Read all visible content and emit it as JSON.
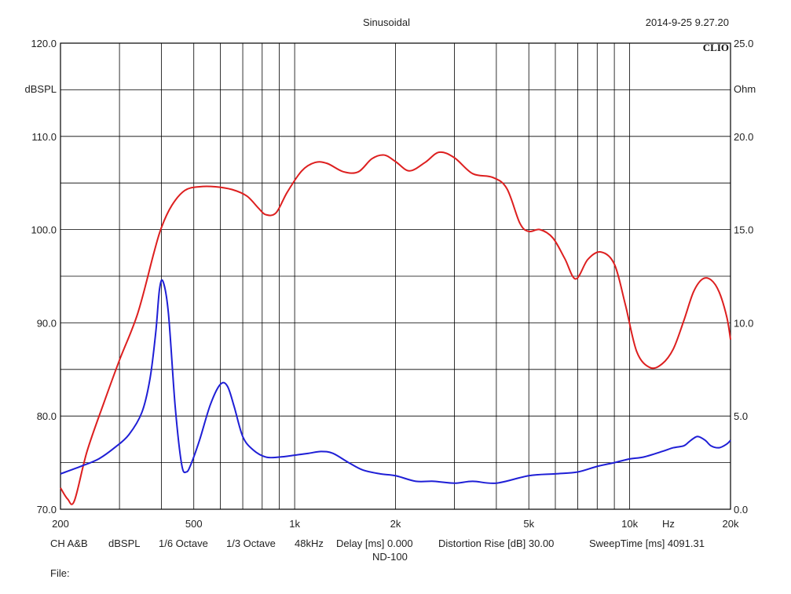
{
  "chart_data": {
    "type": "line",
    "title": "Sinusoidal",
    "timestamp": "2014-9-25 9.27.20",
    "brand": "CLIO",
    "x_scale": "log",
    "xlim": [
      200,
      20000
    ],
    "x_unit": "Hz",
    "x_ticks": [
      {
        "value": 200,
        "label": "200"
      },
      {
        "value": 500,
        "label": "500"
      },
      {
        "value": 1000,
        "label": "1k"
      },
      {
        "value": 2000,
        "label": "2k"
      },
      {
        "value": 5000,
        "label": "5k"
      },
      {
        "value": 10000,
        "label": "10k"
      },
      {
        "value": 20000,
        "label": "20k"
      }
    ],
    "x_grid": [
      200,
      300,
      400,
      500,
      600,
      700,
      800,
      900,
      1000,
      2000,
      3000,
      4000,
      5000,
      6000,
      7000,
      8000,
      9000,
      10000,
      20000
    ],
    "y_left": {
      "label": "dBSPL",
      "lim": [
        70,
        120
      ],
      "ticks": [
        {
          "value": 120,
          "label": "120.0"
        },
        {
          "value": 110,
          "label": "110.0"
        },
        {
          "value": 100,
          "label": "100.0"
        },
        {
          "value": 90,
          "label": "90.0"
        },
        {
          "value": 80,
          "label": "80.0"
        },
        {
          "value": 70,
          "label": "70.0"
        }
      ],
      "grid": [
        70,
        75,
        80,
        85,
        90,
        95,
        100,
        105,
        110,
        115,
        120
      ]
    },
    "y_right": {
      "label": "Ohm",
      "lim": [
        0,
        25
      ],
      "ticks": [
        {
          "value": 25,
          "label": "25.0"
        },
        {
          "value": 20,
          "label": "20.0"
        },
        {
          "value": 15,
          "label": "15.0"
        },
        {
          "value": 10,
          "label": "10.0"
        },
        {
          "value": 5,
          "label": "5.0"
        },
        {
          "value": 0,
          "label": "0.0"
        }
      ]
    },
    "grid": true,
    "series": [
      {
        "color": "#dd1f1f",
        "axis": "left",
        "x": [
          200,
          210,
          220,
          240,
          270,
          300,
          340,
          380,
          400,
          430,
          470,
          520,
          580,
          650,
          720,
          780,
          820,
          880,
          950,
          1050,
          1150,
          1250,
          1400,
          1550,
          1700,
          1850,
          2000,
          2200,
          2450,
          2700,
          3000,
          3400,
          3900,
          4300,
          4700,
          5000,
          5400,
          5900,
          6400,
          6900,
          7500,
          8200,
          9000,
          9700,
          10500,
          11500,
          12500,
          13500,
          14500,
          15500,
          16500,
          17500,
          18500,
          19500,
          20000
        ],
        "y": [
          72.3,
          71.1,
          70.9,
          76.2,
          81.5,
          86.0,
          91.0,
          97.5,
          100.2,
          102.6,
          104.2,
          104.6,
          104.6,
          104.3,
          103.6,
          102.3,
          101.6,
          101.8,
          104.0,
          106.3,
          107.2,
          107.1,
          106.2,
          106.2,
          107.6,
          108.0,
          107.3,
          106.3,
          107.2,
          108.3,
          107.7,
          106.0,
          105.6,
          104.4,
          100.7,
          99.8,
          100.0,
          99.1,
          96.9,
          94.7,
          96.8,
          97.6,
          96.3,
          92.0,
          86.9,
          85.2,
          85.6,
          87.2,
          90.2,
          93.3,
          94.7,
          94.6,
          93.3,
          90.6,
          88.2
        ]
      },
      {
        "color": "#1f1fd6",
        "axis": "right",
        "x": [
          200,
          230,
          260,
          290,
          320,
          350,
          370,
          385,
          395,
          405,
          420,
          440,
          460,
          475,
          490,
          520,
          560,
          600,
          630,
          660,
          700,
          750,
          820,
          900,
          1000,
          1100,
          1200,
          1300,
          1450,
          1600,
          1800,
          2000,
          2300,
          2600,
          3000,
          3400,
          4000,
          5000,
          6000,
          7000,
          8000,
          9000,
          10000,
          11000,
          12500,
          13500,
          14500,
          15000,
          15500,
          16000,
          16800,
          17500,
          18500,
          19500,
          20000
        ],
        "y": [
          1.9,
          2.3,
          2.7,
          3.3,
          4.0,
          5.2,
          7.0,
          9.5,
          11.8,
          12.2,
          10.5,
          5.5,
          2.4,
          2.0,
          2.4,
          3.7,
          5.6,
          6.7,
          6.6,
          5.5,
          3.9,
          3.2,
          2.8,
          2.8,
          2.9,
          3.0,
          3.1,
          3.0,
          2.5,
          2.1,
          1.9,
          1.8,
          1.5,
          1.5,
          1.4,
          1.5,
          1.4,
          1.8,
          1.9,
          2.0,
          2.3,
          2.5,
          2.7,
          2.8,
          3.1,
          3.3,
          3.4,
          3.6,
          3.8,
          3.9,
          3.7,
          3.4,
          3.3,
          3.5,
          3.7
        ]
      }
    ]
  },
  "footer": {
    "channel": "CH A&B",
    "unit": "dBSPL",
    "octave_1": "1/6 Octave",
    "octave_2": "1/3 Octave",
    "sample_rate": "48kHz",
    "delay": "Delay [ms] 0.000",
    "distortion": "Distortion Rise [dB] 30.00",
    "sweep": "SweepTime [ms] 4091.31",
    "device": "ND-100",
    "file_label": "File:"
  }
}
